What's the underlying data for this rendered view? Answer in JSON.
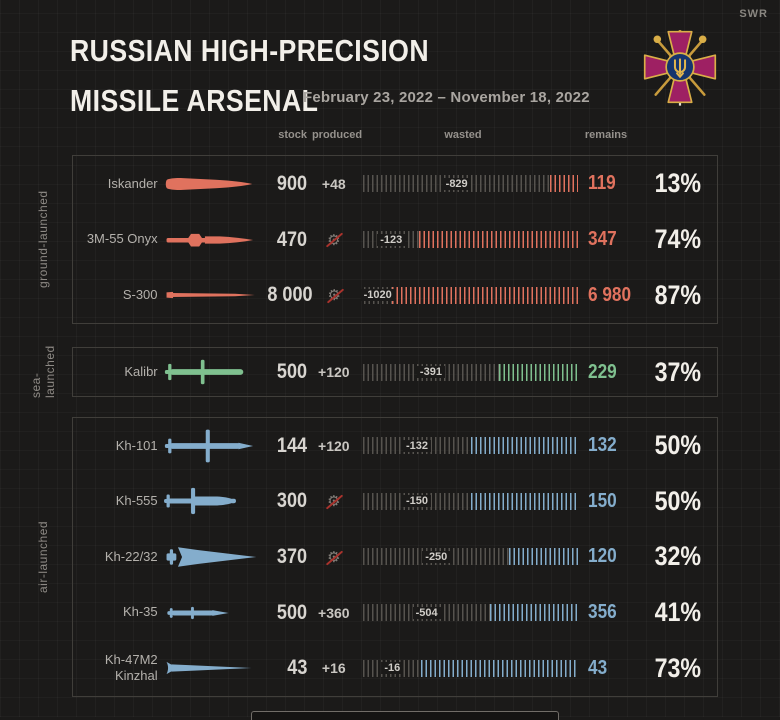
{
  "watermark": "SWR",
  "header": {
    "title_line1": "RUSSIAN HIGH-PRECISION",
    "title_line2": "MISSILE ARSENAL",
    "date_range": "February 23, 2022 – November 18, 2022",
    "emblem": "ukraine-ministry-of-defence-emblem"
  },
  "columns": {
    "stock": "stock",
    "produced": "produced",
    "wasted": "wasted",
    "remains": "remains"
  },
  "colors": {
    "background": "#1b1a19",
    "ground_launched": "#e0725e",
    "sea_launched": "#7fc08f",
    "air_launched": "#84adcc",
    "percent_text": "#f2efe9",
    "wasted_ticks": "#56534e",
    "no_production_slash": "#a8322c"
  },
  "chart_data": {
    "type": "table",
    "title": "Russian high-precision missile arsenal",
    "period": "February 23, 2022 – November 18, 2022",
    "columns": [
      "stock",
      "produced",
      "wasted",
      "remains",
      "remains_percent"
    ],
    "bar_note": "tick bar: gray = wasted share, colored = remains share of (stock+produced)",
    "groups": [
      {
        "label": "ground-launched",
        "color": "#e0725e",
        "rows": [
          {
            "name": "Iskander",
            "icon": "iskander-missile-icon",
            "stock": "900",
            "produced": "+48",
            "not_produced": false,
            "wasted": "-829",
            "remains": "119",
            "percent": "13%",
            "percent_value": 13
          },
          {
            "name": "3M-55 Onyx",
            "icon": "onyx-missile-icon",
            "stock": "470",
            "produced": "",
            "not_produced": true,
            "wasted": "-123",
            "remains": "347",
            "percent": "74%",
            "percent_value": 74
          },
          {
            "name": "S-300",
            "icon": "s300-missile-icon",
            "stock": "8 000",
            "produced": "",
            "not_produced": true,
            "wasted": "-1020",
            "remains": "6 980",
            "percent": "87%",
            "percent_value": 87
          }
        ]
      },
      {
        "label": "sea-launched",
        "color": "#7fc08f",
        "rows": [
          {
            "name": "Kalibr",
            "icon": "kalibr-missile-icon",
            "stock": "500",
            "produced": "+120",
            "not_produced": false,
            "wasted": "-391",
            "remains": "229",
            "percent": "37%",
            "percent_value": 37
          }
        ]
      },
      {
        "label": "air-launched",
        "color": "#84adcc",
        "rows": [
          {
            "name": "Kh-101",
            "icon": "kh101-missile-icon",
            "stock": "144",
            "produced": "+120",
            "not_produced": false,
            "wasted": "-132",
            "remains": "132",
            "percent": "50%",
            "percent_value": 50
          },
          {
            "name": "Kh-555",
            "icon": "kh555-missile-icon",
            "stock": "300",
            "produced": "",
            "not_produced": true,
            "wasted": "-150",
            "remains": "150",
            "percent": "50%",
            "percent_value": 50
          },
          {
            "name": "Kh-22/32",
            "icon": "kh2232-missile-icon",
            "stock": "370",
            "produced": "",
            "not_produced": true,
            "wasted": "-250",
            "remains": "120",
            "percent": "32%",
            "percent_value": 32
          },
          {
            "name": "Kh-35",
            "icon": "kh35-missile-icon",
            "stock": "500",
            "produced": "+360",
            "not_produced": false,
            "wasted": "-504",
            "remains": "356",
            "percent": "41%",
            "percent_value": 41
          },
          {
            "name": "Kh-47M2 Kinzhal",
            "icon": "kinzhal-missile-icon",
            "stock": "43",
            "produced": "+16",
            "not_produced": false,
            "wasted": "-16",
            "remains": "43",
            "percent": "73%",
            "percent_value": 73
          }
        ]
      }
    ]
  }
}
